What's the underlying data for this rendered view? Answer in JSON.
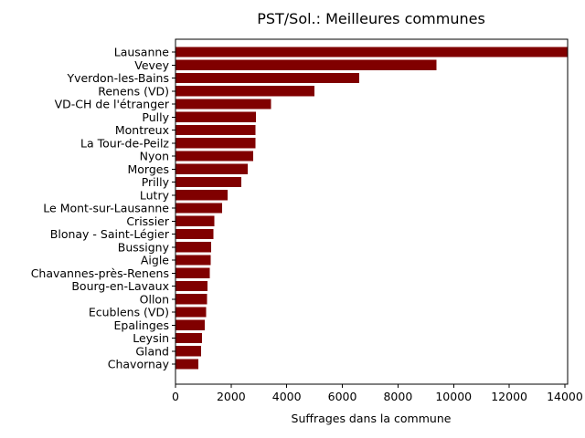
{
  "chart_data": {
    "type": "bar",
    "orientation": "horizontal",
    "title": "PST/Sol.: Meilleures communes",
    "xlabel": "Suffrages dans la commune",
    "ylabel": "",
    "xlim": [
      0,
      14100
    ],
    "xticks": [
      0,
      2000,
      4000,
      6000,
      8000,
      10000,
      12000,
      14000
    ],
    "grid": false,
    "legend": "none",
    "bar_color": "#800000",
    "categories": [
      "Lausanne",
      "Vevey",
      "Yverdon-les-Bains",
      "Renens (VD)",
      "VD-CH de l'étranger",
      "Pully",
      "Montreux",
      "La Tour-de-Peilz",
      "Nyon",
      "Morges",
      "Prilly",
      "Lutry",
      "Le Mont-sur-Lausanne",
      "Crissier",
      "Blonay - Saint-Légier",
      "Bussigny",
      "Aigle",
      "Chavannes-près-Renens",
      "Bourg-en-Lavaux",
      "Ollon",
      "Ecublens (VD)",
      "Epalinges",
      "Leysin",
      "Gland",
      "Chavornay"
    ],
    "values": [
      14100,
      9380,
      6600,
      5000,
      3430,
      2900,
      2880,
      2870,
      2790,
      2600,
      2360,
      1880,
      1680,
      1390,
      1370,
      1280,
      1270,
      1240,
      1150,
      1140,
      1100,
      1050,
      950,
      920,
      820
    ]
  }
}
